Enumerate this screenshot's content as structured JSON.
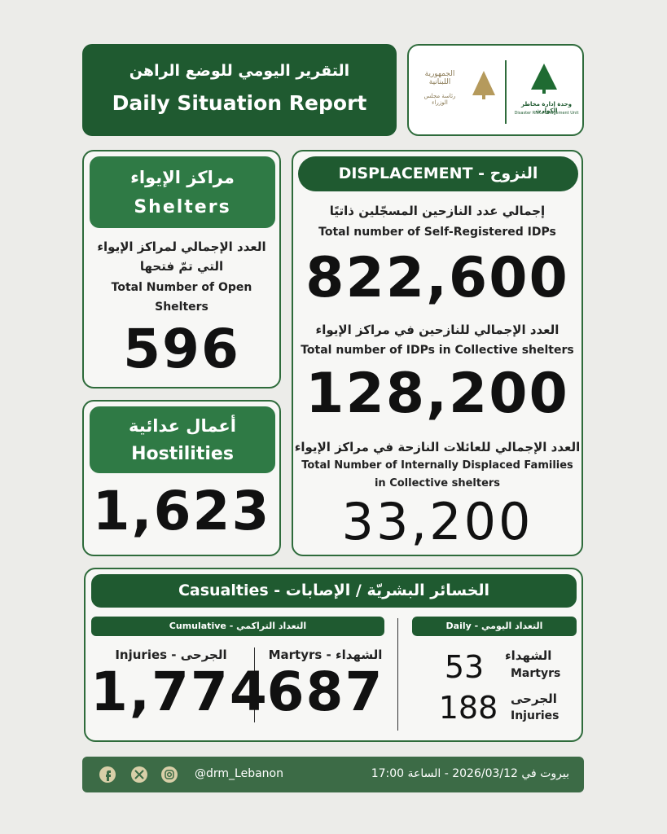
{
  "header": {
    "title_ar": "التقرير اليومي للوضع الراهن",
    "title_en": "Daily Situation Report"
  },
  "logos": {
    "presidency_ar": "الجمهورية اللبنانية",
    "presidency_sub": "رئاسة مجلس الوزراء",
    "drm_ar": "وحدة إدارة مخاطر الكوارث",
    "drm_en": "Disaster Risk Management Unit"
  },
  "shelters": {
    "title_ar": "مراكز الإيواء",
    "title_en": "Shelters",
    "label_ar_1": "العدد الإجمالي لمراكز الإيواء",
    "label_ar_2": "التي تمّ فتحها",
    "label_en_1": "Total Number of Open",
    "label_en_2": "Shelters",
    "value": "596"
  },
  "hostilities": {
    "title_ar": "أعمال عدائية",
    "title_en": "Hostilities",
    "value": "1,623"
  },
  "displacement": {
    "title": "DISPLACEMENT - النزوح",
    "items": [
      {
        "label_ar": "إجمالي عدد النازحين المسجّلين ذاتيًا",
        "label_en": "Total number of Self-Registered IDPs",
        "value": "822,600"
      },
      {
        "label_ar": "العدد الإجمالي للنازحين في مراكز الإيواء",
        "label_en": "Total number of IDPs in Collective shelters",
        "value": "128,200"
      },
      {
        "label_ar": "العدد الإجمالي للعائلات النازحة في مراكز الإيواء",
        "label_en_1": "Total Number of Internally Displaced Families",
        "label_en_2": "in Collective shelters",
        "value": "33,200"
      }
    ]
  },
  "casualties": {
    "title": "Casualties - الخسائر البشريّة / الإصابات",
    "cumulative": {
      "title": "التعداد التراكمي - Cumulative",
      "injuries_label": "Injuries - الجرحى",
      "injuries": "1,774",
      "martyrs_label": "Martyrs - الشهداء",
      "martyrs": "687"
    },
    "daily": {
      "title": "التعداد اليومي - Daily",
      "martyrs": "53",
      "martyrs_ar": "الشهداء",
      "martyrs_en": "Martyrs",
      "injuries": "188",
      "injuries_ar": "الجرحى",
      "injuries_en": "Injuries"
    }
  },
  "footer": {
    "handle": "@drm_Lebanon",
    "date": "بيروت في 2026/03/12 - الساعة 17:00"
  }
}
